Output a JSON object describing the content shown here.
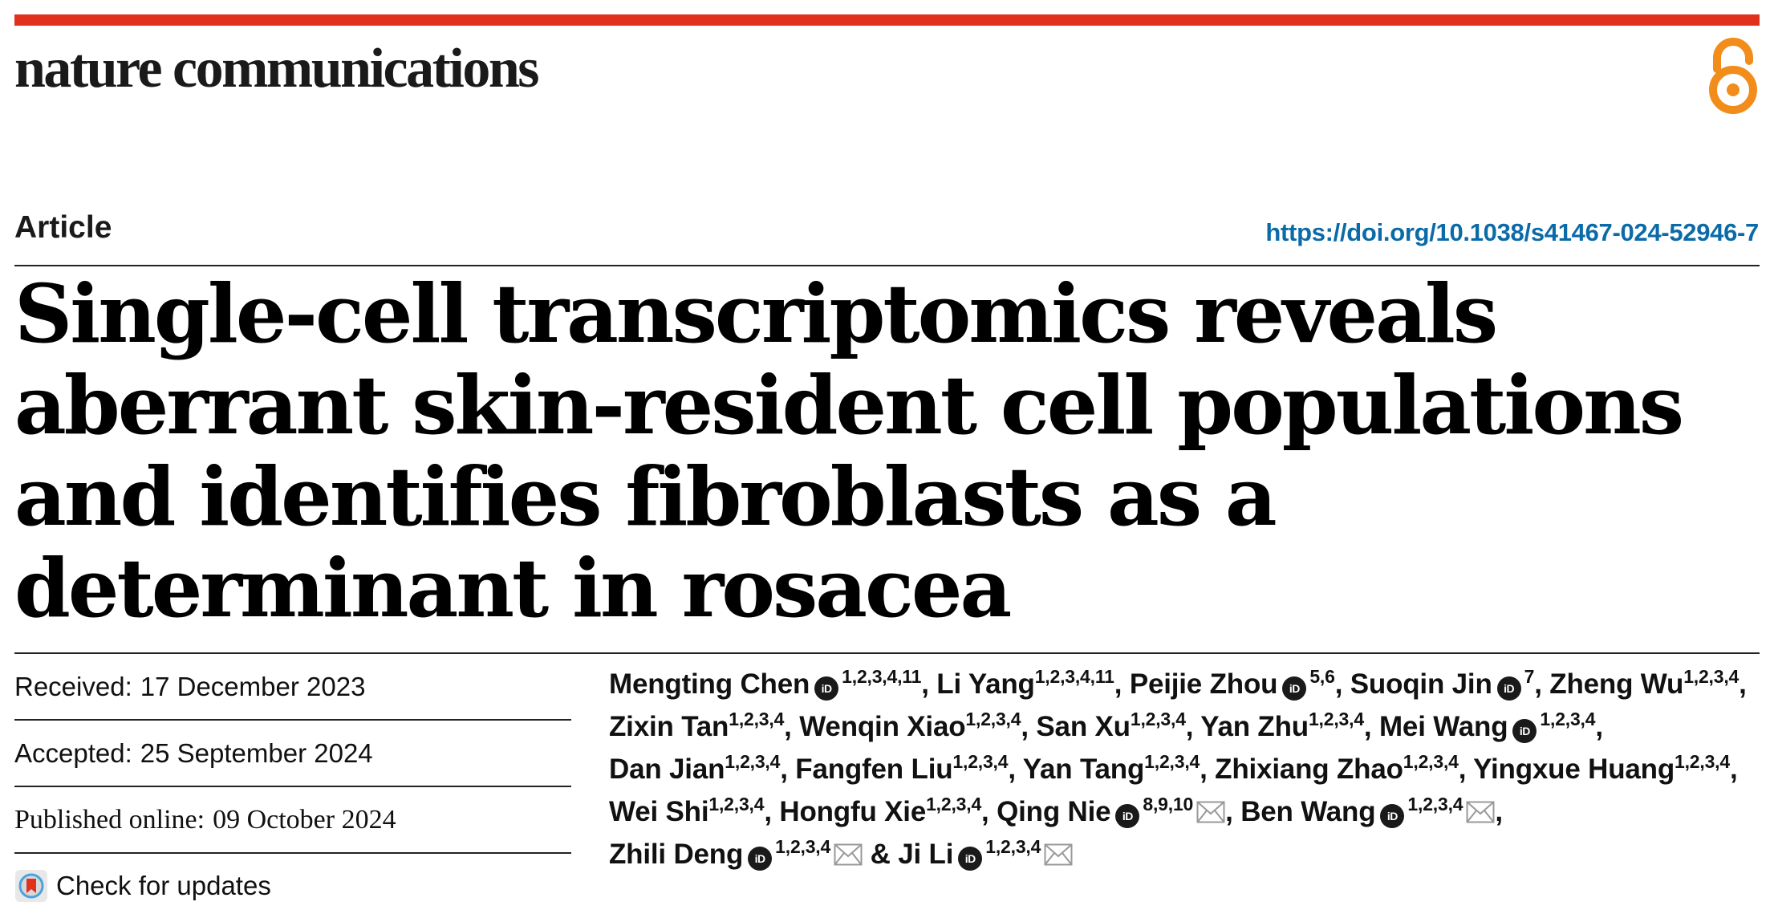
{
  "journal": {
    "name": "nature communications",
    "accent_color": "#e0301e",
    "oa_icon": "open-access-icon",
    "oa_color": "#f28c1a"
  },
  "article": {
    "type": "Article",
    "doi": "https://doi.org/10.1038/s41467-024-52946-7",
    "title": "Single-cell transcriptomics reveals aberrant skin-resident cell populations and identifies fibroblasts as a determinant in rosacea"
  },
  "dates": {
    "received_label": "Received:",
    "received": "17 December 2023",
    "accepted_label": "Accepted:",
    "accepted": "25 September 2024",
    "published_label": "Published online:",
    "published": "09 October 2024"
  },
  "check_updates": {
    "label": "Check for updates",
    "icon": "check-updates-icon"
  },
  "authors": [
    {
      "name": "Mengting Chen",
      "orcid": true,
      "aff": "1,2,3,4,11",
      "email": false
    },
    {
      "name": "Li Yang",
      "orcid": false,
      "aff": "1,2,3,4,11",
      "email": false
    },
    {
      "name": "Peijie Zhou",
      "orcid": true,
      "aff": "5,6",
      "email": false
    },
    {
      "name": "Suoqin Jin",
      "orcid": true,
      "aff": "7",
      "email": false
    },
    {
      "name": "Zheng Wu",
      "orcid": false,
      "aff": "1,2,3,4",
      "email": false
    },
    {
      "name": "Zixin Tan",
      "orcid": false,
      "aff": "1,2,3,4",
      "email": false
    },
    {
      "name": "Wenqin Xiao",
      "orcid": false,
      "aff": "1,2,3,4",
      "email": false
    },
    {
      "name": "San Xu",
      "orcid": false,
      "aff": "1,2,3,4",
      "email": false
    },
    {
      "name": "Yan Zhu",
      "orcid": false,
      "aff": "1,2,3,4",
      "email": false
    },
    {
      "name": "Mei Wang",
      "orcid": true,
      "aff": "1,2,3,4",
      "email": false
    },
    {
      "name": "Dan Jian",
      "orcid": false,
      "aff": "1,2,3,4",
      "email": false
    },
    {
      "name": "Fangfen Liu",
      "orcid": false,
      "aff": "1,2,3,4",
      "email": false
    },
    {
      "name": "Yan Tang",
      "orcid": false,
      "aff": "1,2,3,4",
      "email": false
    },
    {
      "name": "Zhixiang Zhao",
      "orcid": false,
      "aff": "1,2,3,4",
      "email": false
    },
    {
      "name": "Yingxue Huang",
      "orcid": false,
      "aff": "1,2,3,4",
      "email": false
    },
    {
      "name": "Wei Shi",
      "orcid": false,
      "aff": "1,2,3,4",
      "email": false
    },
    {
      "name": "Hongfu Xie",
      "orcid": false,
      "aff": "1,2,3,4",
      "email": false
    },
    {
      "name": "Qing Nie",
      "orcid": true,
      "aff": "8,9,10",
      "email": true
    },
    {
      "name": "Ben Wang",
      "orcid": true,
      "aff": "1,2,3,4",
      "email": true
    },
    {
      "name": "Zhili Deng",
      "orcid": true,
      "aff": "1,2,3,4",
      "email": true
    },
    {
      "name": "Ji Li",
      "orcid": true,
      "aff": "1,2,3,4",
      "email": true
    }
  ],
  "orcid_label": "iD",
  "separators": {
    "comma": ",",
    "last": "&"
  }
}
